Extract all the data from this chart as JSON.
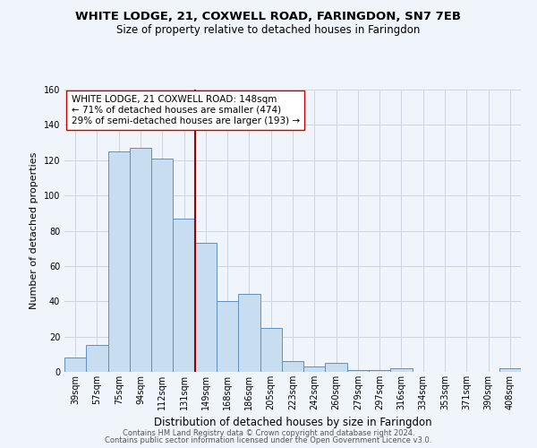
{
  "title": "WHITE LODGE, 21, COXWELL ROAD, FARINGDON, SN7 7EB",
  "subtitle": "Size of property relative to detached houses in Faringdon",
  "xlabel": "Distribution of detached houses by size in Faringdon",
  "ylabel": "Number of detached properties",
  "categories": [
    "39sqm",
    "57sqm",
    "75sqm",
    "94sqm",
    "112sqm",
    "131sqm",
    "149sqm",
    "168sqm",
    "186sqm",
    "205sqm",
    "223sqm",
    "242sqm",
    "260sqm",
    "279sqm",
    "297sqm",
    "316sqm",
    "334sqm",
    "353sqm",
    "371sqm",
    "390sqm",
    "408sqm"
  ],
  "values": [
    8,
    15,
    125,
    127,
    121,
    87,
    73,
    40,
    44,
    25,
    6,
    3,
    5,
    1,
    1,
    2,
    0,
    0,
    0,
    0,
    2
  ],
  "bar_color": "#c8ddf0",
  "bar_edge_color": "#6090c0",
  "vline_x_index": 6,
  "vline_color": "#990000",
  "annotation_text": "WHITE LODGE, 21 COXWELL ROAD: 148sqm\n← 71% of detached houses are smaller (474)\n29% of semi-detached houses are larger (193) →",
  "annotation_box_color": "white",
  "annotation_box_edge_color": "#cc0000",
  "ylim": [
    0,
    160
  ],
  "yticks": [
    0,
    20,
    40,
    60,
    80,
    100,
    120,
    140,
    160
  ],
  "footer1": "Contains HM Land Registry data © Crown copyright and database right 2024.",
  "footer2": "Contains public sector information licensed under the Open Government Licence v3.0.",
  "title_fontsize": 9.5,
  "subtitle_fontsize": 8.5,
  "xlabel_fontsize": 8.5,
  "ylabel_fontsize": 8,
  "annotation_fontsize": 7.5,
  "footer_fontsize": 6,
  "tick_fontsize": 7,
  "background_color": "#f0f5fc",
  "grid_color": "#ccd5e0"
}
